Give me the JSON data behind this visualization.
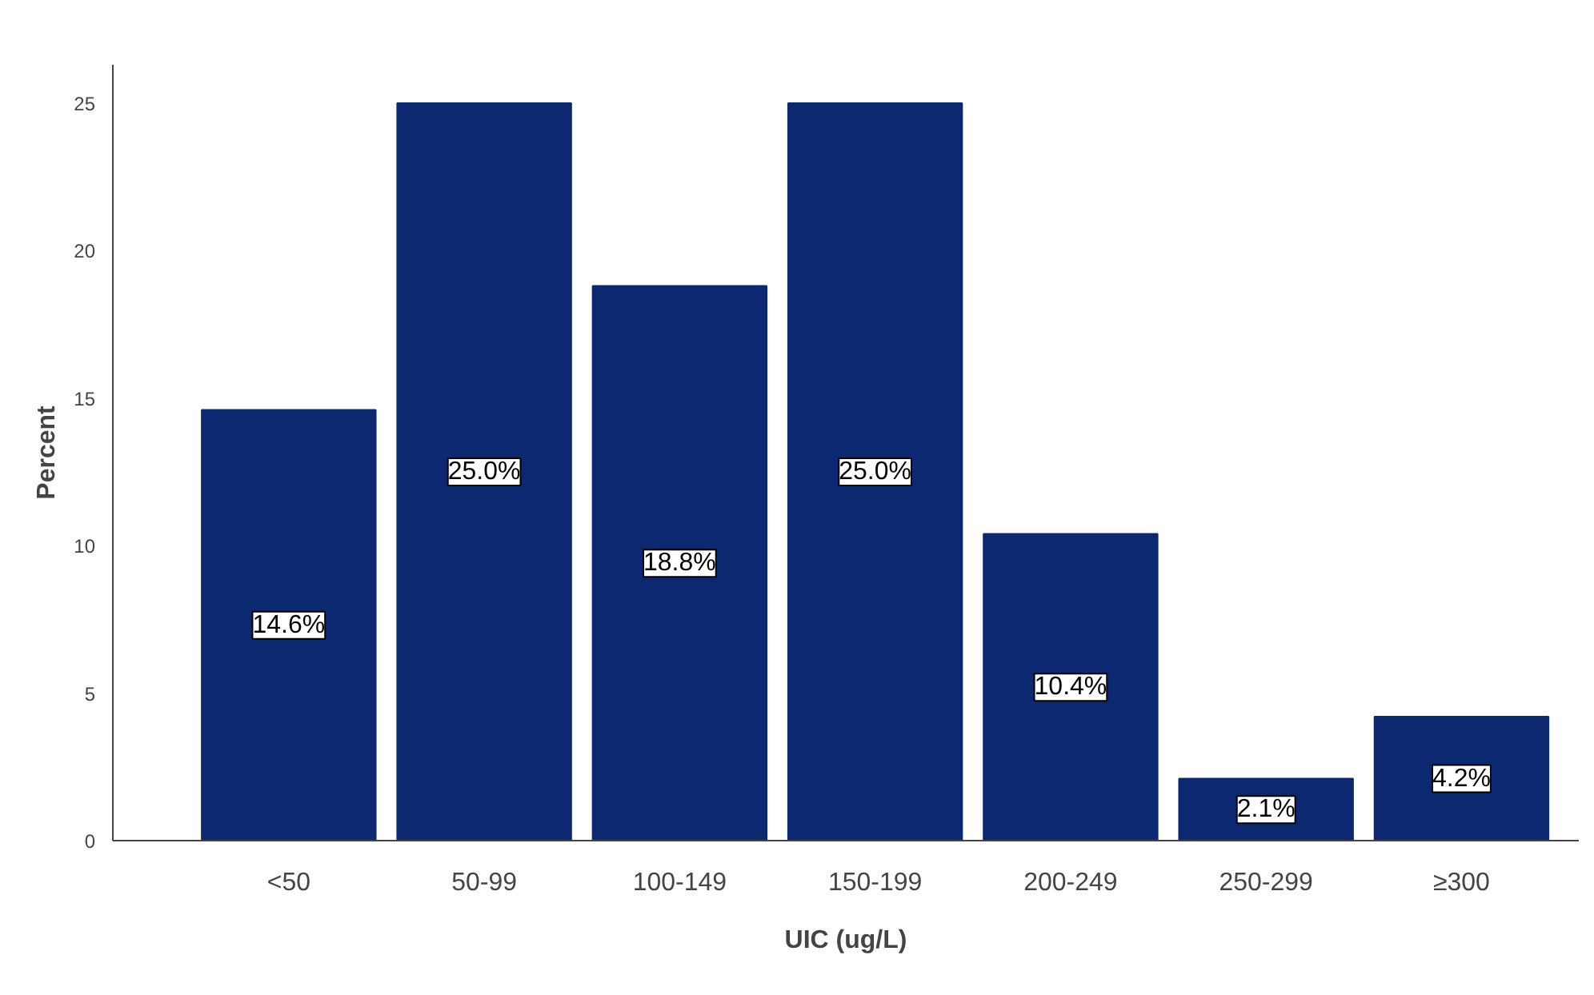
{
  "chart_data": {
    "type": "bar",
    "xlabel": "UIC (ug/L)",
    "ylabel": "Percent",
    "categories": [
      "<50",
      "50-99",
      "100-149",
      "150-199",
      "200-249",
      "250-299",
      "≥300"
    ],
    "values": [
      14.6,
      25.0,
      18.8,
      25.0,
      10.4,
      2.1,
      4.2
    ],
    "value_labels": [
      "14.6%",
      "25.0%",
      "18.8%",
      "25.0%",
      "10.4%",
      "2.1%",
      "4.2%"
    ],
    "color": "#0b2870",
    "ylim": [
      0,
      26.3
    ],
    "yticks": [
      0,
      5,
      10,
      15,
      20,
      25
    ],
    "grid": false
  }
}
